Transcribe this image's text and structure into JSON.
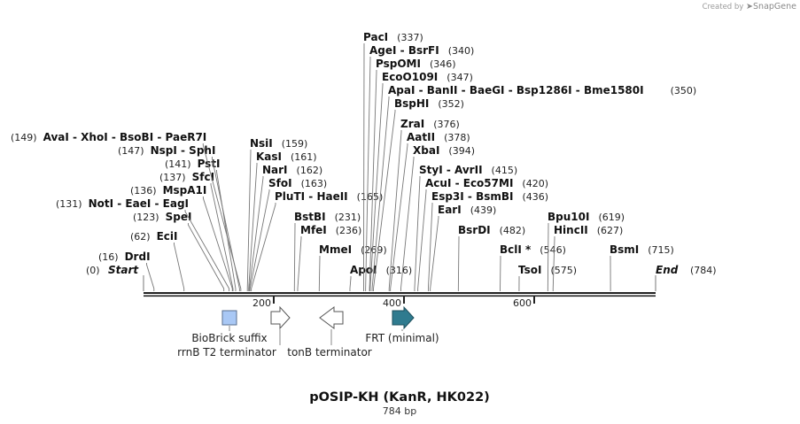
{
  "credit": {
    "prefix": "Created by",
    "brand": "SnapGene"
  },
  "map": {
    "title": "pOSIP-KH (KanR, HK022)",
    "length_label": "784 bp",
    "total_bp": 784,
    "ticks": [
      "200",
      "400",
      "600"
    ],
    "ends": {
      "start": {
        "pos": 0,
        "label": "Start",
        "pos_label": "(0)"
      },
      "end": {
        "pos": 784,
        "label": "End",
        "pos_label": "(784)"
      }
    }
  },
  "sites": [
    {
      "name": "DrdI",
      "pos_label": "(16)",
      "bp": 16
    },
    {
      "name": "EciI",
      "pos_label": "(62)",
      "bp": 62
    },
    {
      "name": "SpeI",
      "pos_label": "(123)",
      "bp": 123
    },
    {
      "name": "NotI - EaeI - EagI",
      "pos_label": "(131)",
      "bp": 131
    },
    {
      "name": "MspA1I",
      "pos_label": "(136)",
      "bp": 136
    },
    {
      "name": "SfcI",
      "pos_label": "(137)",
      "bp": 137
    },
    {
      "name": "PstI",
      "pos_label": "(141)",
      "bp": 141
    },
    {
      "name": "NspI - SphI",
      "pos_label": "(147)",
      "bp": 147
    },
    {
      "name": "AvaI - XhoI - BsoBI - PaeR7I",
      "pos_label": "(149)",
      "bp": 149
    },
    {
      "name": "NsiI",
      "pos_label": "(159)",
      "bp": 159
    },
    {
      "name": "KasI",
      "pos_label": "(161)",
      "bp": 161
    },
    {
      "name": "NarI",
      "pos_label": "(162)",
      "bp": 162
    },
    {
      "name": "SfoI",
      "pos_label": "(163)",
      "bp": 163
    },
    {
      "name": "PluTI - HaeII",
      "pos_label": "(165)",
      "bp": 165
    },
    {
      "name": "BstBI",
      "pos_label": "(231)",
      "bp": 231
    },
    {
      "name": "MfeI",
      "pos_label": "(236)",
      "bp": 236
    },
    {
      "name": "MmeI",
      "pos_label": "(269)",
      "bp": 269
    },
    {
      "name": "ApoI",
      "pos_label": "(316)",
      "bp": 316
    },
    {
      "name": "PacI",
      "pos_label": "(337)",
      "bp": 337
    },
    {
      "name": "AgeI - BsrFI",
      "pos_label": "(340)",
      "bp": 340
    },
    {
      "name": "PspOMI",
      "pos_label": "(346)",
      "bp": 346
    },
    {
      "name": "EcoO109I",
      "pos_label": "(347)",
      "bp": 347
    },
    {
      "name": "ApaI - BanII - BaeGI - Bsp1286I - Bme1580I",
      "pos_label": "(350)",
      "bp": 350
    },
    {
      "name": "BspHI",
      "pos_label": "(352)",
      "bp": 352
    },
    {
      "name": "ZraI",
      "pos_label": "(376)",
      "bp": 376
    },
    {
      "name": "AatII",
      "pos_label": "(378)",
      "bp": 378
    },
    {
      "name": "XbaI",
      "pos_label": "(394)",
      "bp": 394
    },
    {
      "name": "StyI - AvrII",
      "pos_label": "(415)",
      "bp": 415
    },
    {
      "name": "AcuI - Eco57MI",
      "pos_label": "(420)",
      "bp": 420
    },
    {
      "name": "Esp3I - BsmBI",
      "pos_label": "(436)",
      "bp": 436
    },
    {
      "name": "EarI",
      "pos_label": "(439)",
      "bp": 439
    },
    {
      "name": "BsrDI",
      "pos_label": "(482)",
      "bp": 482
    },
    {
      "name": "BclI *",
      "pos_label": "(546)",
      "bp": 546
    },
    {
      "name": "TsoI",
      "pos_label": "(575)",
      "bp": 575
    },
    {
      "name": "Bpu10I",
      "pos_label": "(619)",
      "bp": 619
    },
    {
      "name": "HincII",
      "pos_label": "(627)",
      "bp": 627
    },
    {
      "name": "BsmI",
      "pos_label": "(715)",
      "bp": 715
    }
  ],
  "features": [
    {
      "name": "BioBrick suffix",
      "type": "box",
      "color": "#a9c8f5"
    },
    {
      "name": "rrnB T2 terminator",
      "type": "arrow-right",
      "color": "#ffffff"
    },
    {
      "name": "tonB terminator",
      "type": "arrow-left",
      "color": "#ffffff"
    },
    {
      "name": "FRT (minimal)",
      "type": "arrow-right",
      "color": "#2f7b8f"
    }
  ]
}
